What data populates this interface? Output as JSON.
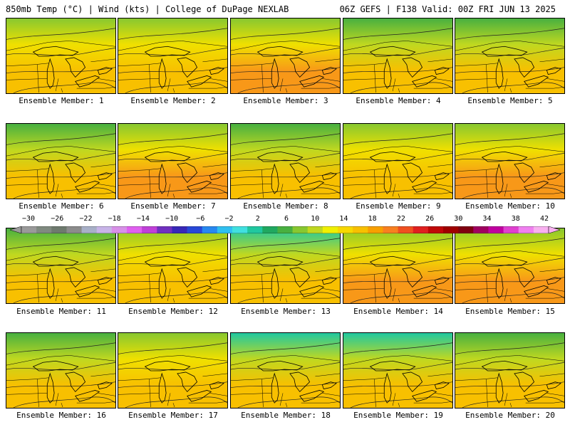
{
  "header": {
    "title_left": "850mb Temp (°C) | Wind (kts) | College of DuPage NEXLAB",
    "title_right": "06Z GEFS | F138 Valid: 00Z FRI JUN 13 2025"
  },
  "colorbar": {
    "labels": [
      "−30",
      "−26",
      "−22",
      "−18",
      "−14",
      "−10",
      "−6",
      "−2",
      "2",
      "6",
      "10",
      "14",
      "18",
      "22",
      "26",
      "30",
      "34",
      "38",
      "42"
    ],
    "colors": [
      "#9a9a9a",
      "#808a80",
      "#6e7a6e",
      "#8c8c8c",
      "#a8b0c8",
      "#c8b4e8",
      "#d890e8",
      "#e060f0",
      "#c040d8",
      "#7030c0",
      "#3828b8",
      "#2848d8",
      "#2888f0",
      "#30c0f0",
      "#40e0e0",
      "#20c8a0",
      "#20a860",
      "#48b040",
      "#88c830",
      "#c0d820",
      "#f0f000",
      "#f8d800",
      "#f8c000",
      "#f8a000",
      "#f88020",
      "#f05020",
      "#e02020",
      "#c00808",
      "#a00000",
      "#800010",
      "#a00060",
      "#c000a0",
      "#e040d0",
      "#f080f0",
      "#f8b0f0"
    ]
  },
  "members": [
    {
      "label": "Ensemble Member: 1",
      "warmth": 0.55
    },
    {
      "label": "Ensemble Member: 2",
      "warmth": 0.55
    },
    {
      "label": "Ensemble Member: 3",
      "warmth": 0.65
    },
    {
      "label": "Ensemble Member: 4",
      "warmth": 0.45
    },
    {
      "label": "Ensemble Member: 5",
      "warmth": 0.5
    },
    {
      "label": "Ensemble Member: 6",
      "warmth": 0.4
    },
    {
      "label": "Ensemble Member: 7",
      "warmth": 0.65
    },
    {
      "label": "Ensemble Member: 8",
      "warmth": 0.4
    },
    {
      "label": "Ensemble Member: 9",
      "warmth": 0.55
    },
    {
      "label": "Ensemble Member: 10",
      "warmth": 0.65
    },
    {
      "label": "Ensemble Member: 11",
      "warmth": 0.5
    },
    {
      "label": "Ensemble Member: 12",
      "warmth": 0.55
    },
    {
      "label": "Ensemble Member: 13",
      "warmth": 0.35
    },
    {
      "label": "Ensemble Member: 14",
      "warmth": 0.6
    },
    {
      "label": "Ensemble Member: 15",
      "warmth": 0.6
    },
    {
      "label": "Ensemble Member: 16",
      "warmth": 0.45
    },
    {
      "label": "Ensemble Member: 17",
      "warmth": 0.55
    },
    {
      "label": "Ensemble Member: 18",
      "warmth": 0.3
    },
    {
      "label": "Ensemble Member: 19",
      "warmth": 0.3
    },
    {
      "label": "Ensemble Member: 20",
      "warmth": 0.4
    }
  ]
}
